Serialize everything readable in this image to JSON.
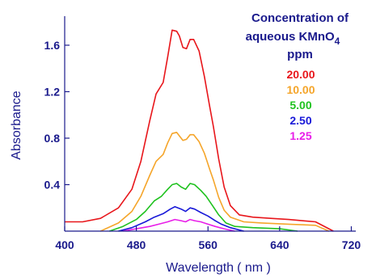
{
  "chart_data": {
    "type": "line",
    "xlabel": "Wavelength",
    "xlabel_unit": "( nm )",
    "ylabel": "Absorbance",
    "xlim": [
      400,
      725
    ],
    "ylim": [
      0,
      1.85
    ],
    "x_ticks": [
      "400",
      "480",
      "560",
      "640",
      "720"
    ],
    "y_ticks": [
      "0.4",
      "0.8",
      "1.2",
      "1.6"
    ],
    "grid": false,
    "legend_title_lines": [
      "Concentration of",
      "aqueous KMnO",
      "ppm"
    ],
    "legend_title_subscript": "4",
    "legend_placement": "top-right",
    "series": [
      {
        "name": "20.00",
        "color": "#e8161b",
        "points": [
          [
            400,
            0.08
          ],
          [
            420,
            0.08
          ],
          [
            440,
            0.11
          ],
          [
            460,
            0.2
          ],
          [
            475,
            0.36
          ],
          [
            485,
            0.6
          ],
          [
            495,
            0.95
          ],
          [
            502,
            1.18
          ],
          [
            510,
            1.28
          ],
          [
            515,
            1.5
          ],
          [
            520,
            1.73
          ],
          [
            525,
            1.72
          ],
          [
            528,
            1.68
          ],
          [
            532,
            1.58
          ],
          [
            536,
            1.57
          ],
          [
            540,
            1.65
          ],
          [
            544,
            1.65
          ],
          [
            550,
            1.55
          ],
          [
            556,
            1.33
          ],
          [
            562,
            1.07
          ],
          [
            566,
            0.9
          ],
          [
            572,
            0.62
          ],
          [
            578,
            0.38
          ],
          [
            585,
            0.22
          ],
          [
            595,
            0.14
          ],
          [
            610,
            0.12
          ],
          [
            630,
            0.11
          ],
          [
            650,
            0.1
          ],
          [
            680,
            0.08
          ],
          [
            700,
            0.0
          ]
        ]
      },
      {
        "name": "10.00",
        "color": "#f5a52a",
        "points": [
          [
            440,
            0.0
          ],
          [
            460,
            0.07
          ],
          [
            475,
            0.17
          ],
          [
            485,
            0.3
          ],
          [
            495,
            0.48
          ],
          [
            502,
            0.6
          ],
          [
            510,
            0.66
          ],
          [
            515,
            0.76
          ],
          [
            520,
            0.84
          ],
          [
            525,
            0.85
          ],
          [
            528,
            0.82
          ],
          [
            532,
            0.78
          ],
          [
            536,
            0.79
          ],
          [
            540,
            0.83
          ],
          [
            544,
            0.83
          ],
          [
            550,
            0.77
          ],
          [
            556,
            0.67
          ],
          [
            562,
            0.53
          ],
          [
            566,
            0.44
          ],
          [
            572,
            0.29
          ],
          [
            578,
            0.18
          ],
          [
            585,
            0.12
          ],
          [
            600,
            0.08
          ],
          [
            620,
            0.07
          ],
          [
            650,
            0.06
          ],
          [
            680,
            0.05
          ],
          [
            695,
            0.0
          ]
        ]
      },
      {
        "name": "5.00",
        "color": "#1fc21f",
        "points": [
          [
            450,
            0.0
          ],
          [
            465,
            0.04
          ],
          [
            480,
            0.1
          ],
          [
            490,
            0.17
          ],
          [
            500,
            0.26
          ],
          [
            508,
            0.3
          ],
          [
            515,
            0.36
          ],
          [
            520,
            0.4
          ],
          [
            525,
            0.41
          ],
          [
            530,
            0.38
          ],
          [
            535,
            0.36
          ],
          [
            540,
            0.41
          ],
          [
            545,
            0.4
          ],
          [
            552,
            0.35
          ],
          [
            558,
            0.3
          ],
          [
            565,
            0.22
          ],
          [
            572,
            0.14
          ],
          [
            580,
            0.07
          ],
          [
            590,
            0.04
          ],
          [
            610,
            0.03
          ],
          [
            640,
            0.02
          ],
          [
            660,
            0.0
          ]
        ]
      },
      {
        "name": "2.50",
        "color": "#1818d8",
        "points": [
          [
            460,
            0.0
          ],
          [
            475,
            0.03
          ],
          [
            490,
            0.08
          ],
          [
            500,
            0.12
          ],
          [
            510,
            0.15
          ],
          [
            518,
            0.19
          ],
          [
            523,
            0.21
          ],
          [
            530,
            0.19
          ],
          [
            535,
            0.17
          ],
          [
            540,
            0.2
          ],
          [
            545,
            0.19
          ],
          [
            552,
            0.16
          ],
          [
            560,
            0.13
          ],
          [
            568,
            0.09
          ],
          [
            575,
            0.06
          ],
          [
            585,
            0.03
          ],
          [
            600,
            0.0
          ]
        ]
      },
      {
        "name": "1.25",
        "color": "#e81ee8",
        "points": [
          [
            465,
            0.0
          ],
          [
            480,
            0.02
          ],
          [
            495,
            0.04
          ],
          [
            505,
            0.06
          ],
          [
            515,
            0.08
          ],
          [
            523,
            0.1
          ],
          [
            530,
            0.09
          ],
          [
            535,
            0.08
          ],
          [
            540,
            0.1
          ],
          [
            545,
            0.09
          ],
          [
            552,
            0.08
          ],
          [
            560,
            0.06
          ],
          [
            568,
            0.04
          ],
          [
            578,
            0.02
          ],
          [
            590,
            0.0
          ]
        ]
      }
    ]
  }
}
